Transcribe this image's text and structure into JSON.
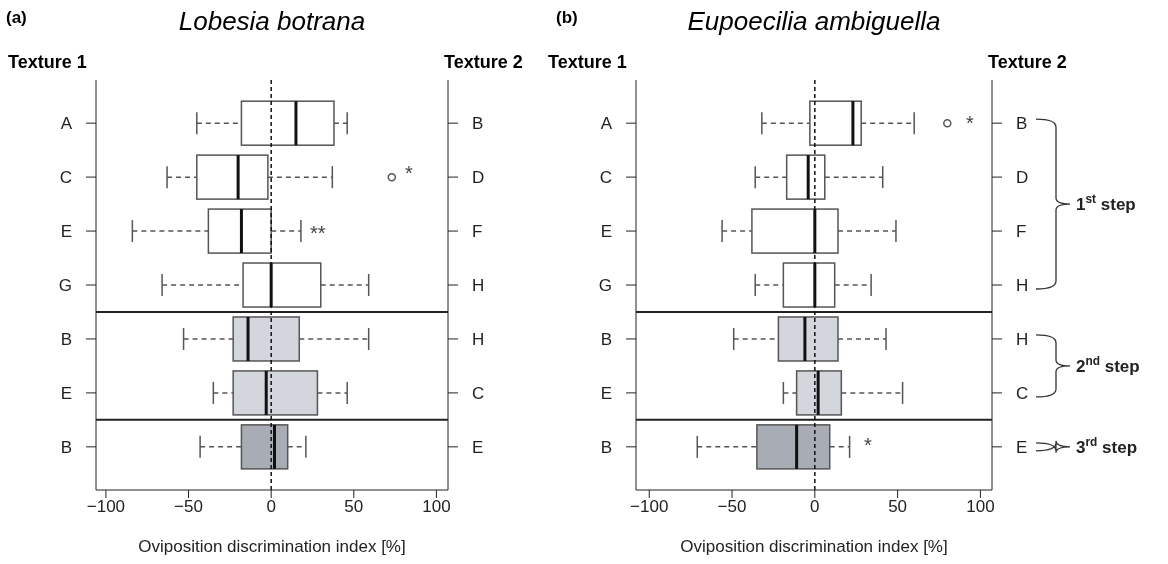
{
  "chart_data": [
    {
      "type": "box",
      "orientation": "horizontal",
      "title": "Lobesia botrana",
      "ylabel": "Texture 1",
      "y2label": "Texture 2",
      "xlabel": "Oviposition discrimination index [%]",
      "categories": [
        "A",
        "C",
        "E",
        "G",
        "B",
        "E",
        "B"
      ],
      "y2_categories": [
        "B",
        "D",
        "F",
        "H",
        "H",
        "C",
        "E"
      ],
      "xlim": [
        -106,
        107
      ],
      "xticks": [
        -100,
        -50,
        0,
        50,
        100
      ],
      "series": [
        {
          "color": "#ffffff",
          "boxes": [
            {
              "low": -45,
              "q1": -18,
              "median": 15,
              "q3": 38,
              "high": 46
            },
            {
              "low": -63,
              "q1": -45,
              "median": -20,
              "q3": -2,
              "high": 37,
              "outliers": [
                73
              ]
            },
            {
              "low": -84,
              "q1": -38,
              "median": -18,
              "q3": 0,
              "high": 18
            },
            {
              "low": -66,
              "q1": -17,
              "median": 0,
              "q3": 30,
              "high": 59
            },
            null,
            null,
            null
          ]
        },
        {
          "color": "#d3d6dc",
          "boxes": [
            null,
            null,
            null,
            null,
            {
              "low": -53,
              "q1": -23,
              "median": -14,
              "q3": 17,
              "high": 59
            },
            {
              "low": -35,
              "q1": -23,
              "median": -3,
              "q3": 28,
              "high": 46
            },
            null
          ]
        },
        {
          "color": "#a8acb4",
          "boxes": [
            null,
            null,
            null,
            null,
            null,
            null,
            {
              "low": -43,
              "q1": -18,
              "median": 2,
              "q3": 10,
              "high": 21
            }
          ]
        }
      ],
      "ref_lines": [
        {
          "axis": "x",
          "value": 0,
          "line_style": "dashed"
        }
      ],
      "annotations": [
        "(a)",
        "*",
        {
          "text": "**",
          "x": 18,
          "y": "E"
        }
      ]
    },
    {
      "type": "box",
      "orientation": "horizontal",
      "title": "Eupoecilia ambiguella",
      "ylabel": "Texture 1",
      "y2label": "Texture 2",
      "xlabel": "Oviposition discrimination index [%]",
      "categories": [
        "A",
        "C",
        "E",
        "G",
        "B",
        "E",
        "B"
      ],
      "y2_categories": [
        "B",
        "D",
        "F",
        "H",
        "H",
        "C",
        "E"
      ],
      "xlim": [
        -108,
        107
      ],
      "xticks": [
        -100,
        -50,
        0,
        50,
        100
      ],
      "series": [
        {
          "color": "#ffffff",
          "boxes": [
            {
              "low": -32,
              "q1": -3,
              "median": 23,
              "q3": 28,
              "high": 60,
              "outliers": [
                80
              ]
            },
            {
              "low": -36,
              "q1": -17,
              "median": -4,
              "q3": 6,
              "high": 41
            },
            {
              "low": -56,
              "q1": -38,
              "median": 0,
              "q3": 14,
              "high": 49
            },
            {
              "low": -36,
              "q1": -19,
              "median": 0,
              "q3": 12,
              "high": 34
            },
            null,
            null,
            null
          ]
        },
        {
          "color": "#d3d6dc",
          "boxes": [
            null,
            null,
            null,
            null,
            {
              "low": -49,
              "q1": -22,
              "median": -6,
              "q3": 14,
              "high": 43
            },
            {
              "low": -19,
              "q1": -11,
              "median": 2,
              "q3": 16,
              "high": 53
            },
            null
          ]
        },
        {
          "color": "#a8acb4",
          "boxes": [
            null,
            null,
            null,
            null,
            null,
            null,
            {
              "low": -71,
              "q1": -35,
              "median": -11,
              "q3": 9,
              "high": 21
            }
          ]
        }
      ],
      "ref_lines": [
        {
          "axis": "x",
          "value": 0,
          "line_style": "dashed"
        }
      ],
      "annotations": [
        "(b)",
        "*",
        "*",
        "1$^{st}$ step",
        "2$^{nd}$ step",
        "3$^{rd}$ step"
      ]
    }
  ]
}
